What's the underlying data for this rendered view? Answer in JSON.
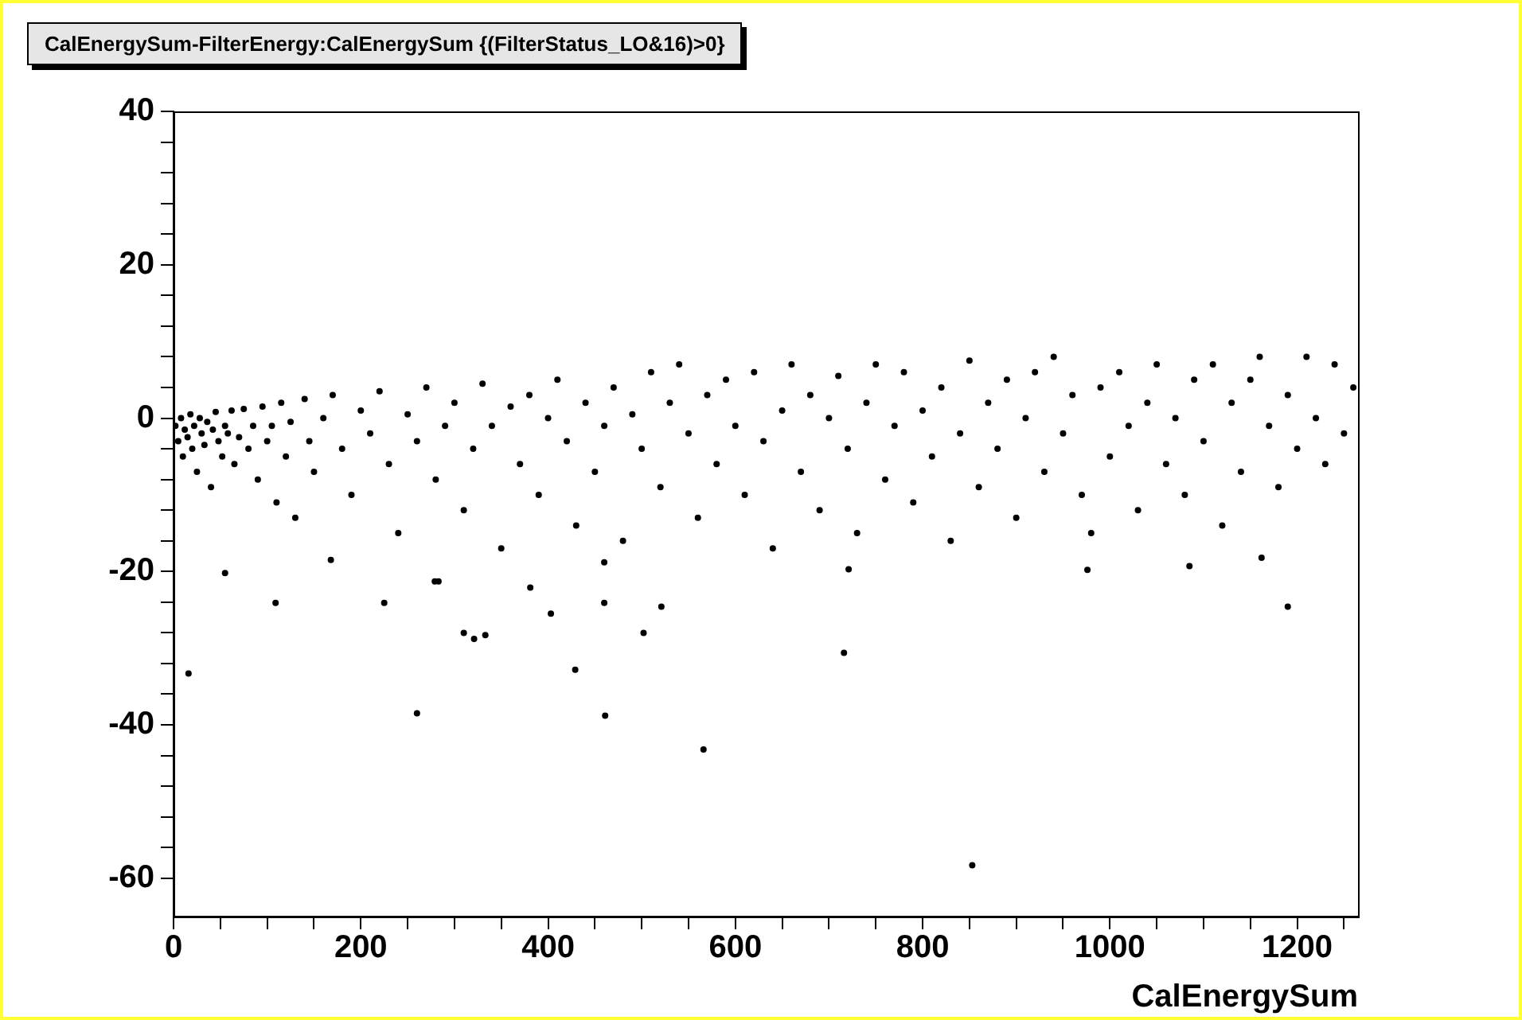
{
  "chart_data": {
    "type": "scatter",
    "title": "CalEnergySum-FilterEnergy:CalEnergySum {(FilterStatus_LO&16)>0}",
    "xlabel": "CalEnergySum",
    "color": "#000000",
    "marker": "circle",
    "x": [
      2,
      5,
      8,
      10,
      12,
      15,
      18,
      20,
      22,
      25,
      28,
      30,
      33,
      36,
      40,
      42,
      45,
      48,
      52,
      55,
      58,
      62,
      65,
      70,
      75,
      80,
      85,
      90,
      95,
      100,
      105,
      110,
      115,
      120,
      125,
      130,
      140,
      145,
      150,
      160,
      170,
      180,
      190,
      200,
      210,
      220,
      230,
      240,
      250,
      260,
      270,
      280,
      290,
      300,
      310,
      320,
      330,
      340,
      350,
      360,
      370,
      380,
      390,
      400,
      410,
      420,
      430,
      440,
      450,
      460,
      470,
      480,
      490,
      500,
      510,
      520,
      530,
      540,
      550,
      560,
      570,
      580,
      590,
      600,
      610,
      620,
      630,
      640,
      650,
      660,
      670,
      680,
      690,
      700,
      710,
      720,
      730,
      740,
      750,
      760,
      770,
      780,
      790,
      800,
      810,
      820,
      830,
      840,
      850,
      860,
      870,
      880,
      890,
      900,
      910,
      920,
      930,
      940,
      950,
      960,
      970,
      980,
      990,
      1000,
      1010,
      1020,
      1030,
      1040,
      1050,
      1060,
      1070,
      1080,
      1090,
      1100,
      1110,
      1120,
      1130,
      1140,
      1150,
      1160,
      1170,
      1180,
      1190,
      1200,
      1210,
      1220,
      1230,
      1240,
      1250,
      1260,
      55,
      109,
      168,
      225,
      279,
      283,
      310,
      321,
      333,
      260,
      16,
      381,
      403,
      429,
      460,
      460,
      461,
      502,
      521,
      566,
      716,
      721,
      853,
      976,
      1085,
      1162,
      1190
    ],
    "values": [
      -1,
      -3,
      0,
      -5,
      -1.5,
      -2.5,
      0.5,
      -4,
      -1,
      -7,
      0,
      -2,
      -3.5,
      -0.5,
      -9,
      -1.5,
      0.8,
      -3,
      -5,
      -1,
      -2,
      1,
      -6,
      -2.5,
      1.2,
      -4,
      -1,
      -8,
      1.5,
      -3,
      -1,
      -11,
      2,
      -5,
      -0.5,
      -13,
      2.5,
      -3,
      -7,
      0,
      3,
      -4,
      -10,
      1,
      -2,
      3.5,
      -6,
      -15,
      0.5,
      -3,
      4,
      -8,
      -1,
      2,
      -12,
      -4,
      4.5,
      -1,
      -17,
      1.5,
      -6,
      3,
      -10,
      0,
      5,
      -3,
      -14,
      2,
      -7,
      -1,
      4,
      -16,
      0.5,
      -4,
      6,
      -9,
      2,
      7,
      -2,
      -13,
      3,
      -6,
      5,
      -1,
      -10,
      6,
      -3,
      -17,
      1,
      7,
      -7,
      3,
      -12,
      0,
      5.5,
      -4,
      -15,
      2,
      7,
      -8,
      -1,
      6,
      -11,
      1,
      -5,
      4,
      -16,
      -2,
      7.5,
      -9,
      2,
      -4,
      5,
      -13,
      0,
      6,
      -7,
      8,
      -2,
      3,
      -10,
      -15,
      4,
      -5,
      6,
      -1,
      -12,
      2,
      7,
      -6,
      0,
      -10,
      5,
      -3,
      7,
      -14,
      2,
      -7,
      5,
      8,
      -1,
      -9,
      3,
      -4,
      8,
      0,
      -6,
      7,
      -2,
      4,
      -20.2,
      -24.1,
      -18.5,
      -24.1,
      -21.3,
      -21.3,
      -28,
      -28.8,
      -28.3,
      -38.5,
      -33.3,
      -22.1,
      -25.5,
      -32.8,
      -18.8,
      -24.1,
      -38.8,
      -28,
      -24.6,
      -43.2,
      -30.6,
      -19.7,
      -58.3,
      -19.8,
      -19.3,
      -18.2,
      -24.6
    ],
    "xlim": [
      0,
      1265
    ],
    "ylim": [
      -65,
      40
    ],
    "xticks": [
      0,
      {
        "value": 50,
        "label": null
      },
      {
        "value": 100,
        "label": null
      },
      {
        "value": 150,
        "label": null
      },
      200,
      {
        "value": 250,
        "label": null
      },
      {
        "value": 300,
        "label": null
      },
      {
        "value": 350,
        "label": null
      },
      400,
      {
        "value": 450,
        "label": null
      },
      {
        "value": 500,
        "label": null
      },
      {
        "value": 550,
        "label": null
      },
      600,
      {
        "value": 650,
        "label": null
      },
      {
        "value": 700,
        "label": null
      },
      {
        "value": 750,
        "label": null
      },
      800,
      {
        "value": 850,
        "label": null
      },
      {
        "value": 900,
        "label": null
      },
      {
        "value": 950,
        "label": null
      },
      1000,
      {
        "value": 1050,
        "label": null
      },
      {
        "value": 1100,
        "label": null
      },
      {
        "value": 1150,
        "label": null
      },
      1200,
      {
        "value": 1250,
        "label": null
      }
    ],
    "yticks": [
      -60,
      {
        "value": -56,
        "label": null
      },
      {
        "value": -52,
        "label": null
      },
      {
        "value": -48,
        "label": null
      },
      {
        "value": -44,
        "label": null
      },
      -40,
      {
        "value": -36,
        "label": null
      },
      {
        "value": -32,
        "label": null
      },
      {
        "value": -28,
        "label": null
      },
      {
        "value": -24,
        "label": null
      },
      -20,
      {
        "value": -16,
        "label": null
      },
      {
        "value": -12,
        "label": null
      },
      {
        "value": -8,
        "label": null
      },
      {
        "value": -4,
        "label": null
      },
      0,
      {
        "value": 4,
        "label": null
      },
      {
        "value": 8,
        "label": null
      },
      {
        "value": 12,
        "label": null
      },
      {
        "value": 16,
        "label": null
      },
      20,
      {
        "value": 24,
        "label": null
      },
      {
        "value": 28,
        "label": null
      },
      {
        "value": 32,
        "label": null
      },
      {
        "value": 36,
        "label": null
      },
      40
    ]
  }
}
